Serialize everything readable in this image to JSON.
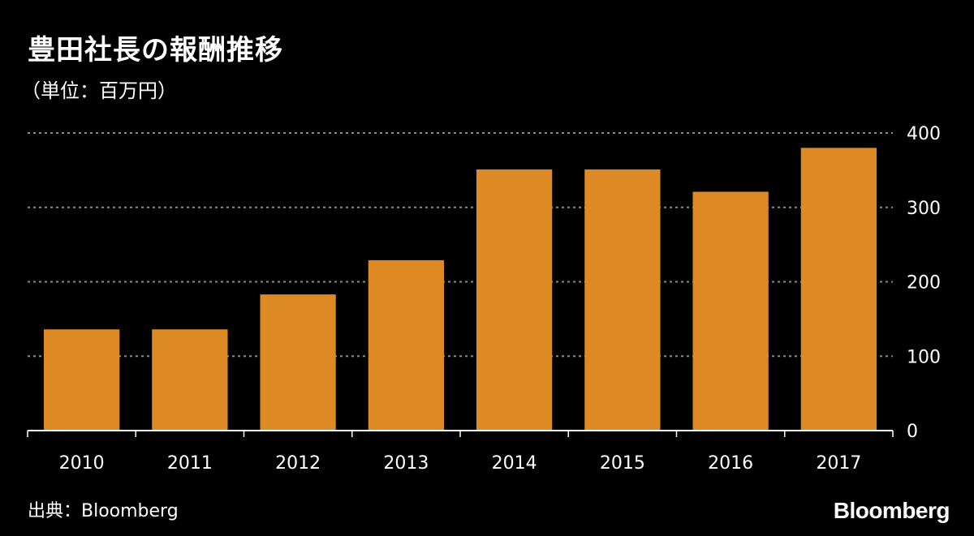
{
  "header": {
    "title": "豊田社長の報酬推移",
    "subtitle": "（単位：百万円）"
  },
  "footer": {
    "source": "出典：Bloomberg",
    "logo": "Bloomberg"
  },
  "colors": {
    "background": "#000000",
    "bar": "#dd8a25",
    "grid": "#8a8a8a",
    "text": "#ffffff"
  },
  "chart_data": {
    "type": "bar",
    "title": "豊田社長の報酬推移",
    "subtitle": "（単位：百万円）",
    "categories": [
      "2010",
      "2011",
      "2012",
      "2013",
      "2014",
      "2015",
      "2016",
      "2017"
    ],
    "values": [
      136,
      136,
      183,
      229,
      351,
      351,
      321,
      380
    ],
    "ylim": [
      0,
      400
    ],
    "yticks": [
      0,
      100,
      200,
      300,
      400
    ],
    "ytick_labels": [
      "0",
      "100",
      "200",
      "300",
      "400"
    ],
    "y_axis_side": "right",
    "grid": true,
    "xlabel": "",
    "ylabel": ""
  }
}
